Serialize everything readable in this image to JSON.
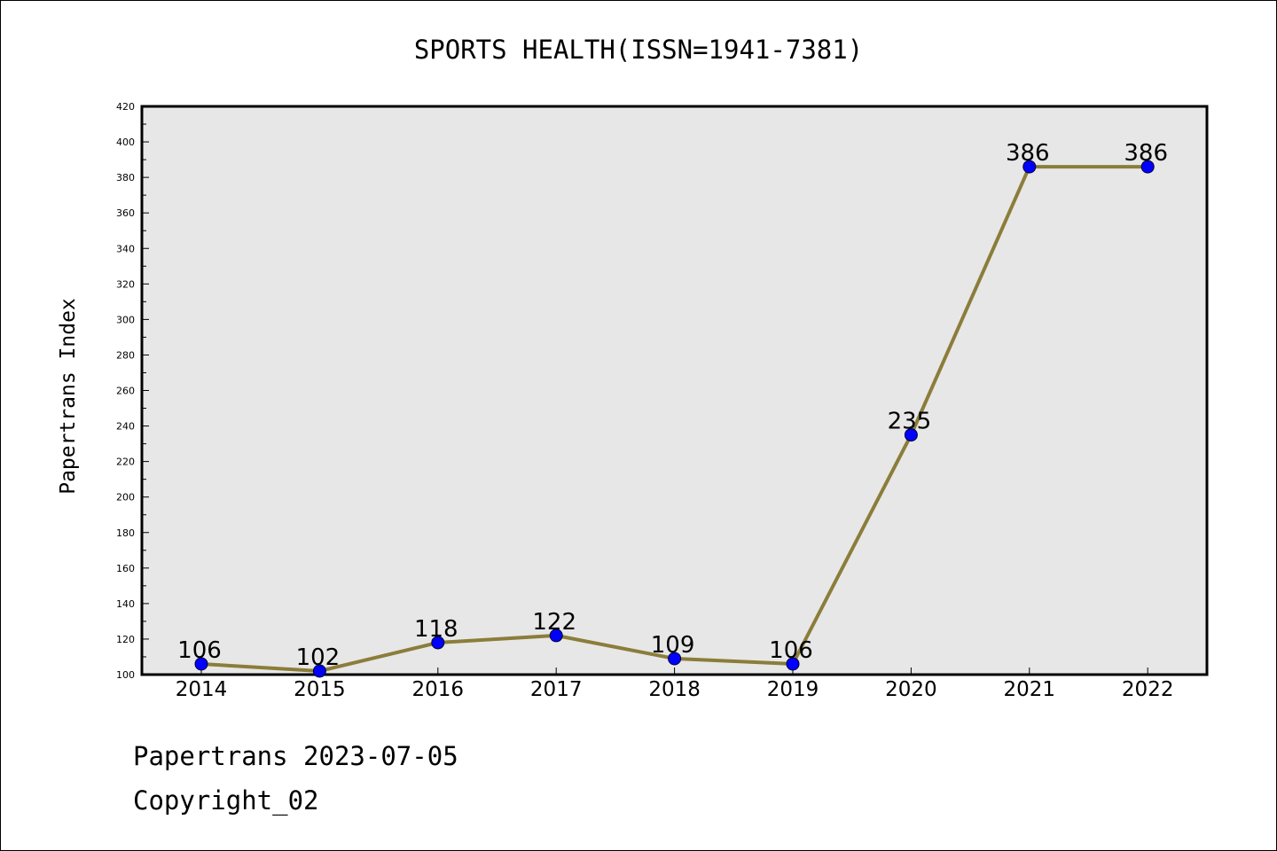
{
  "chart_data": {
    "type": "line",
    "title": "SPORTS HEALTH(ISSN=1941-7381)",
    "ylabel": "Papertrans Index",
    "xlabel": "",
    "categories": [
      "2014",
      "2015",
      "2016",
      "2017",
      "2018",
      "2019",
      "2020",
      "2021",
      "2022"
    ],
    "series": [
      {
        "values": [
          106,
          102,
          118,
          122,
          109,
          106,
          235,
          386,
          386
        ]
      }
    ],
    "ylim": [
      100,
      420
    ],
    "yticks": [
      100,
      120,
      140,
      160,
      180,
      200,
      220,
      240,
      260,
      280,
      300,
      320,
      340,
      360,
      380,
      400,
      420
    ],
    "grid": false,
    "legend": "none",
    "colors": {
      "line": "#8b7d3a",
      "marker": "#0000ff",
      "plot_background": "#e7e7e7"
    }
  },
  "footer": {
    "date_line": "Papertrans 2023-07-05",
    "copyright": "Copyright_02"
  }
}
